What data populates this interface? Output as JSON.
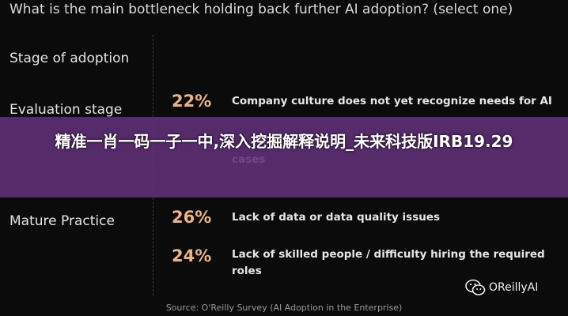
{
  "chart_data": {
    "type": "table",
    "title": "What is the main bottleneck holding back further AI adoption?  (select one)",
    "header": "Stage of adoption",
    "rows": [
      {
        "stage": "Evaluation stage",
        "value": "22%",
        "label": "Company culture does not yet recognize needs for AI"
      },
      {
        "stage": "",
        "value": "",
        "label": "cases"
      },
      {
        "stage": "Mature Practice",
        "value": "26%",
        "label": "Lack of data or data quality issues"
      },
      {
        "stage": "",
        "value": "24%",
        "label": "Lack of skilled people / difficulty hiring the required roles"
      }
    ],
    "source": "Source:  O'Reilly Survey (AI Adoption in the Enterprise)"
  },
  "overlay": {
    "banner": "精准一肖一码一子一中,深入挖掘解释说明_未来科技版IRB19.29"
  },
  "logo": {
    "text": "OReillyAI",
    "icon": "wechat-icon"
  },
  "colors": {
    "background": "#0b0b0b",
    "accent": "#e9b48a",
    "banner": "#603078"
  }
}
